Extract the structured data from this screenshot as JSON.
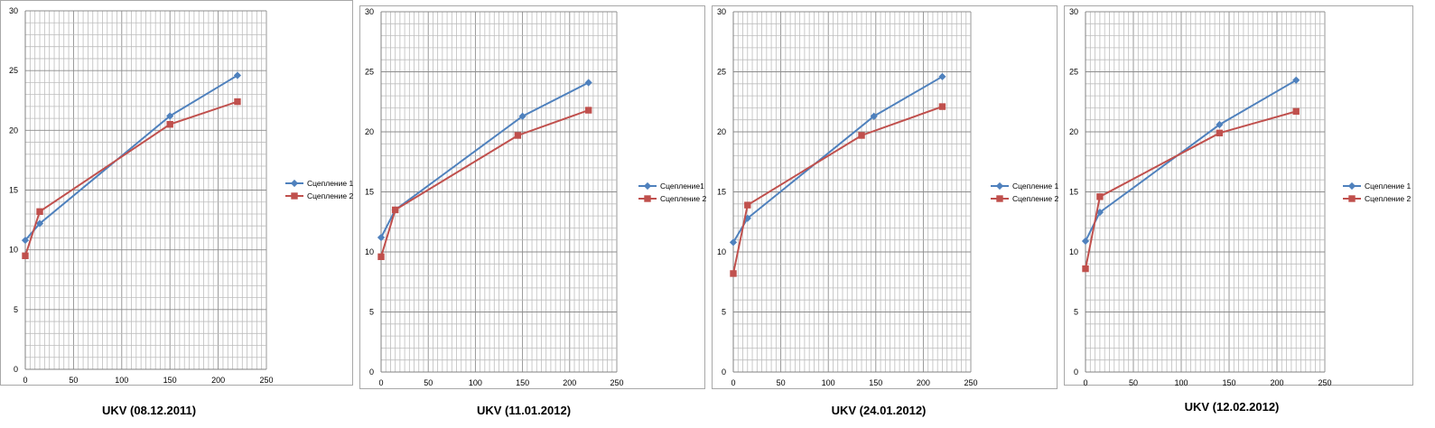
{
  "chart_data": [
    {
      "type": "line",
      "caption": "UKV (08.12.2011)",
      "xlim": [
        0,
        250
      ],
      "ylim": [
        0,
        30
      ],
      "x_ticks": [
        0,
        50,
        100,
        150,
        200,
        250
      ],
      "y_ticks": [
        0,
        5,
        10,
        15,
        20,
        25,
        30
      ],
      "legend_position": "right",
      "series": [
        {
          "name": "Сцепление 1",
          "color": "#4f81bd",
          "marker": "diamond",
          "points": [
            [
              0,
              10.8
            ],
            [
              15,
              12.2
            ],
            [
              150,
              21.2
            ],
            [
              220,
              24.6
            ]
          ]
        },
        {
          "name": "Сцепление 2",
          "color": "#c0504d",
          "marker": "square",
          "points": [
            [
              0,
              9.5
            ],
            [
              15,
              13.2
            ],
            [
              150,
              20.5
            ],
            [
              220,
              22.4
            ]
          ]
        }
      ]
    },
    {
      "type": "line",
      "caption": "UKV (11.01.2012)",
      "xlim": [
        0,
        250
      ],
      "ylim": [
        0,
        30
      ],
      "x_ticks": [
        0,
        50,
        100,
        150,
        200,
        250
      ],
      "y_ticks": [
        0,
        5,
        10,
        15,
        20,
        25,
        30
      ],
      "legend_position": "right",
      "series": [
        {
          "name": "Сцепление1",
          "color": "#4f81bd",
          "marker": "diamond",
          "points": [
            [
              0,
              11.2
            ],
            [
              15,
              13.5
            ],
            [
              150,
              21.3
            ],
            [
              220,
              24.1
            ]
          ]
        },
        {
          "name": "Сцепление 2",
          "color": "#c0504d",
          "marker": "square",
          "points": [
            [
              0,
              9.6
            ],
            [
              15,
              13.5
            ],
            [
              145,
              19.7
            ],
            [
              220,
              21.8
            ]
          ]
        }
      ]
    },
    {
      "type": "line",
      "caption": "UKV (24.01.2012)",
      "xlim": [
        0,
        250
      ],
      "ylim": [
        0,
        30
      ],
      "x_ticks": [
        0,
        50,
        100,
        150,
        200,
        250
      ],
      "y_ticks": [
        0,
        5,
        10,
        15,
        20,
        25,
        30
      ],
      "legend_position": "right",
      "series": [
        {
          "name": "Сцепление 1",
          "color": "#4f81bd",
          "marker": "diamond",
          "points": [
            [
              0,
              10.8
            ],
            [
              15,
              12.8
            ],
            [
              148,
              21.3
            ],
            [
              220,
              24.6
            ]
          ]
        },
        {
          "name": "Сцепление 2",
          "color": "#c0504d",
          "marker": "square",
          "points": [
            [
              0,
              8.2
            ],
            [
              15,
              13.9
            ],
            [
              135,
              19.7
            ],
            [
              220,
              22.1
            ]
          ]
        }
      ]
    },
    {
      "type": "line",
      "caption": "UKV (12.02.2012)",
      "xlim": [
        0,
        250
      ],
      "ylim": [
        0,
        30
      ],
      "x_ticks": [
        0,
        50,
        100,
        150,
        200,
        250
      ],
      "y_ticks": [
        0,
        5,
        10,
        15,
        20,
        25,
        30
      ],
      "legend_position": "right",
      "series": [
        {
          "name": "Сцепление 1",
          "color": "#4f81bd",
          "marker": "diamond",
          "points": [
            [
              0,
              10.9
            ],
            [
              15,
              13.3
            ],
            [
              140,
              20.6
            ],
            [
              220,
              24.3
            ]
          ]
        },
        {
          "name": "Сцепление 2",
          "color": "#c0504d",
          "marker": "square",
          "points": [
            [
              0,
              8.6
            ],
            [
              15,
              14.6
            ],
            [
              140,
              19.9
            ],
            [
              220,
              21.7
            ]
          ]
        }
      ]
    }
  ]
}
